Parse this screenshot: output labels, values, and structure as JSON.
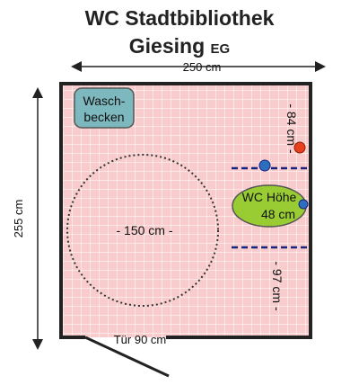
{
  "title": {
    "line1": "WC Stadtbibliothek",
    "line2": "Giesing",
    "suffix": "EG"
  },
  "dimensions": {
    "width": "250 cm",
    "height": "255 cm",
    "turning_circle": "- 150 cm -",
    "door": "Tür 90 cm",
    "upper_distance": "- 84 cm -",
    "lower_distance": "- 97 cm -"
  },
  "fixtures": {
    "sink_line1": "Wasch-",
    "sink_line2": "becken",
    "wc_line1": "WC Höhe",
    "wc_line2": "48 cm"
  },
  "colors": {
    "floor": "#f8cccc",
    "grid": "#ffffff",
    "wall": "#222222",
    "sink": "#7eb8bf",
    "wc": "#99cc33",
    "dashed_line": "#1a237e",
    "dot_blue": "#2d6fbf",
    "dot_red": "#e8401c"
  }
}
